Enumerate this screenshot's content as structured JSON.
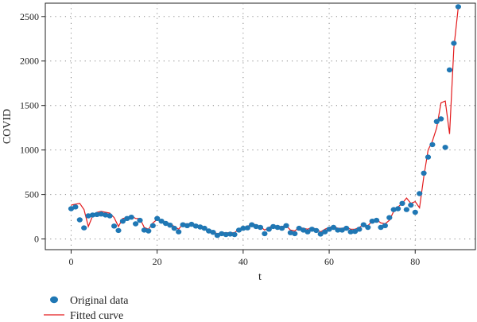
{
  "chart_data": {
    "type": "scatter",
    "xlabel": "t",
    "ylabel": "COVID",
    "xlim": [
      -6,
      94
    ],
    "ylim": [
      -120,
      2650
    ],
    "xticks": [
      0,
      20,
      40,
      60,
      80
    ],
    "yticks": [
      0,
      500,
      1000,
      1500,
      2000,
      2500
    ],
    "grid": "dotted",
    "legend_position": "bottom-left",
    "colors": {
      "points": "#1f77b4",
      "curve": "#e31a1c"
    },
    "series": [
      {
        "name": "Original data",
        "style": "points",
        "x": [
          0,
          1,
          2,
          3,
          4,
          5,
          6,
          7,
          8,
          9,
          10,
          11,
          12,
          13,
          14,
          15,
          16,
          17,
          18,
          19,
          20,
          21,
          22,
          23,
          24,
          25,
          26,
          27,
          28,
          29,
          30,
          31,
          32,
          33,
          34,
          35,
          36,
          37,
          38,
          39,
          40,
          41,
          42,
          43,
          44,
          45,
          46,
          47,
          48,
          49,
          50,
          51,
          52,
          53,
          54,
          55,
          56,
          57,
          58,
          59,
          60,
          61,
          62,
          63,
          64,
          65,
          66,
          67,
          68,
          69,
          70,
          71,
          72,
          73,
          74,
          75,
          76,
          77,
          78,
          79,
          80,
          81,
          82,
          83,
          84,
          85,
          86,
          87,
          88,
          89,
          90
        ],
        "y": [
          340,
          360,
          215,
          125,
          260,
          270,
          275,
          280,
          270,
          260,
          145,
          95,
          200,
          230,
          245,
          170,
          210,
          100,
          90,
          150,
          230,
          200,
          175,
          155,
          120,
          80,
          160,
          150,
          165,
          145,
          135,
          120,
          90,
          75,
          40,
          60,
          50,
          55,
          50,
          100,
          120,
          125,
          160,
          140,
          130,
          60,
          110,
          140,
          130,
          120,
          150,
          70,
          60,
          120,
          100,
          80,
          110,
          95,
          55,
          80,
          110,
          130,
          100,
          100,
          120,
          80,
          85,
          110,
          160,
          130,
          200,
          210,
          130,
          150,
          240,
          330,
          340,
          400,
          330,
          380,
          300,
          510,
          740,
          920,
          1060,
          1320,
          1350,
          1030,
          1900,
          2200,
          2610
        ]
      },
      {
        "name": "Fitted curve",
        "style": "line",
        "x": [
          0,
          1,
          2,
          3,
          4,
          5,
          6,
          7,
          8,
          9,
          10,
          11,
          12,
          13,
          14,
          15,
          16,
          17,
          18,
          19,
          20,
          21,
          22,
          23,
          24,
          25,
          26,
          27,
          28,
          29,
          30,
          31,
          32,
          33,
          34,
          35,
          36,
          37,
          38,
          39,
          40,
          41,
          42,
          43,
          44,
          45,
          46,
          47,
          48,
          49,
          50,
          51,
          52,
          53,
          54,
          55,
          56,
          57,
          58,
          59,
          60,
          61,
          62,
          63,
          64,
          65,
          66,
          67,
          68,
          69,
          70,
          71,
          72,
          73,
          74,
          75,
          76,
          77,
          78,
          79,
          80,
          81,
          82,
          83,
          84,
          85,
          86,
          87,
          88,
          89,
          90
        ],
        "y": [
          380,
          390,
          400,
          330,
          140,
          260,
          300,
          310,
          300,
          290,
          240,
          140,
          230,
          240,
          260,
          230,
          230,
          130,
          110,
          180,
          220,
          200,
          190,
          170,
          140,
          110,
          170,
          170,
          170,
          150,
          130,
          120,
          100,
          80,
          60,
          70,
          70,
          70,
          70,
          110,
          130,
          140,
          170,
          160,
          140,
          100,
          130,
          150,
          140,
          140,
          150,
          100,
          90,
          130,
          120,
          110,
          130,
          110,
          80,
          110,
          130,
          140,
          120,
          120,
          130,
          110,
          110,
          130,
          160,
          150,
          200,
          220,
          180,
          170,
          210,
          310,
          360,
          400,
          460,
          400,
          420,
          350,
          700,
          1000,
          1100,
          1250,
          1530,
          1550,
          1180,
          2150,
          2600
        ]
      }
    ]
  }
}
